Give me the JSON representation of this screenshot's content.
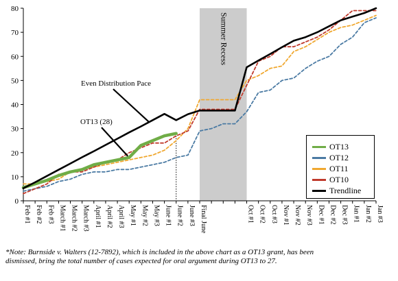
{
  "chart_data": {
    "type": "line",
    "x": [
      "Feb #1",
      "Feb #2",
      "Feb #3",
      "March #1",
      "March #2",
      "March #3",
      "April #1",
      "April #2",
      "April #3",
      "May #1",
      "May #2",
      "May #3",
      "June #1",
      "June #2",
      "June #3",
      "Final June",
      "",
      "",
      "",
      "Oct #1",
      "Oct #2",
      "Oct #3",
      "Nov #1",
      "Nov #2",
      "Nov #3",
      "Dec #1",
      "Dec #2",
      "Dec #3",
      "Jan #1",
      "Jan #2",
      "Jan #3"
    ],
    "ylim": [
      0,
      80
    ],
    "yticks": [
      0,
      10,
      20,
      30,
      40,
      50,
      60,
      70,
      80
    ],
    "grid": false,
    "legend_position": "bottom-right",
    "shaded_region": {
      "from": "Final June",
      "to": "Oct #1",
      "label": "Summer Recess",
      "color": "#cccccc"
    },
    "vertical_marker": {
      "at": "June #2",
      "style": "dotted"
    },
    "annotations": [
      {
        "text": "Even Distribution Pace",
        "target_series": "Trendline"
      },
      {
        "text": "OT13 (28)",
        "target_series": "OT13"
      }
    ],
    "series": [
      {
        "name": "OT13",
        "color": "#70ad47",
        "width": 4.5,
        "dash": "",
        "values": [
          5.5,
          7,
          8.5,
          10.5,
          12,
          13,
          15,
          16,
          17,
          18,
          23,
          25,
          27,
          28,
          null,
          null,
          null,
          null,
          null,
          null,
          null,
          null,
          null,
          null,
          null,
          null,
          null,
          null,
          null,
          null,
          null
        ]
      },
      {
        "name": "OT12",
        "color": "#4a7aa3",
        "width": 1.8,
        "dash": "4,3",
        "values": [
          4,
          5,
          6,
          8,
          9,
          11,
          12,
          12,
          13,
          13,
          14,
          15,
          16,
          18,
          19,
          29,
          30,
          32,
          32,
          37,
          45,
          46,
          50,
          51,
          55,
          58,
          60,
          65,
          68,
          74,
          76
        ]
      },
      {
        "name": "OT11",
        "color": "#f0a830",
        "width": 1.8,
        "dash": "4,3",
        "values": [
          7,
          7,
          8,
          9,
          12,
          13,
          14,
          15,
          16,
          17,
          18,
          19,
          21,
          25,
          30,
          42,
          42,
          42,
          42,
          50,
          52,
          55,
          56,
          62,
          64,
          67,
          70,
          72,
          73,
          75,
          77
        ]
      },
      {
        "name": "OT10",
        "color": "#c0392b",
        "width": 1.8,
        "dash": "4,3",
        "values": [
          3,
          5,
          7,
          11,
          12,
          12,
          14,
          16,
          17,
          20,
          22,
          24,
          24,
          27,
          29,
          38,
          38,
          38,
          38,
          48,
          58,
          60,
          64,
          64,
          66,
          68,
          71,
          75,
          79,
          79,
          79
        ]
      },
      {
        "name": "Trendline",
        "color": "#000000",
        "width": 2.6,
        "dash": "",
        "values": [
          5.2,
          7.7,
          10.3,
          12.9,
          15.5,
          18.1,
          20.6,
          23.2,
          25.8,
          28.4,
          30.9,
          33.5,
          36.1,
          33.5,
          36,
          37.5,
          37.5,
          37.5,
          37.5,
          55.5,
          58.3,
          61,
          63.8,
          66.5,
          68,
          70,
          72.5,
          75,
          76.5,
          78,
          80
        ]
      }
    ]
  },
  "note": {
    "lines": [
      "*Note: Burnside v. Walters (12-7892), which is included in the above chart as a OT13 grant, has been",
      "dismissed, bring the total number of cases expected for oral argument during OT13 to 27."
    ]
  }
}
